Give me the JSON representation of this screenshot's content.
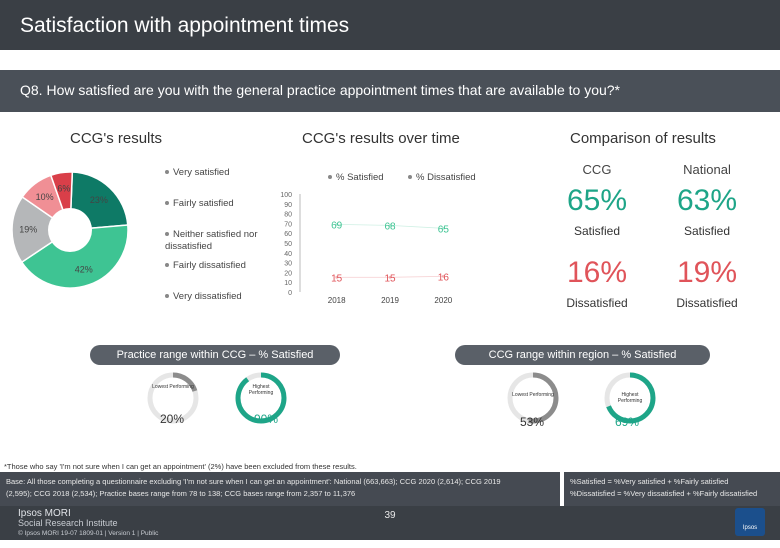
{
  "header": {
    "title": "Satisfaction with appointment times"
  },
  "question": "Q8. How satisfied are you with the general practice appointment times that are available to you?*",
  "sections": {
    "ccg_results": "CCG's results",
    "over_time": "CCG's results over time",
    "comparison": "Comparison of results"
  },
  "colors": {
    "very_satisfied": "#0e7a66",
    "fairly_satisfied": "#3ec493",
    "neither": "#b5b7b9",
    "fairly_dissatisfied": "#f08f95",
    "very_dissatisfied": "#d93f49",
    "satisfied_bar": "#3ec493",
    "dissatisfied_bar": "#e0545a"
  },
  "chart_data": [
    {
      "type": "pie",
      "categories": [
        "Very satisfied",
        "Fairly satisfied",
        "Neither satisfied nor dissatisfied",
        "Fairly dissatisfied",
        "Very dissatisfied"
      ],
      "values": [
        23,
        42,
        19,
        10,
        6
      ],
      "labels": [
        "23%",
        "42%",
        "19%",
        "10%",
        "6%"
      ]
    },
    {
      "type": "bar",
      "categories": [
        "2018",
        "2019",
        "2020"
      ],
      "series": [
        {
          "name": "% Satisfied",
          "values": [
            69,
            68,
            65
          ]
        },
        {
          "name": "% Dissatisfied",
          "values": [
            15,
            15,
            16
          ]
        }
      ],
      "yticks": [
        "0",
        "10",
        "20",
        "30",
        "40",
        "50",
        "60",
        "70",
        "80",
        "90",
        "100"
      ],
      "ylim": [
        0,
        100
      ]
    }
  ],
  "comparison": {
    "ccg_head": "CCG",
    "national_head": "National",
    "ccg_satisfied": "65%",
    "national_satisfied": "63%",
    "satisfied_label": "Satisfied",
    "ccg_dissatisfied": "16%",
    "national_dissatisfied": "19%",
    "dissatisfied_label": "Dissatisfied"
  },
  "practice_range": {
    "title": "Practice range within CCG – % Satisfied",
    "lowest_label": "Lowest Performing",
    "highest_label": "Highest Performing",
    "lowest": "20%",
    "highest": "90%",
    "lowest_value": 20,
    "highest_value": 90
  },
  "region_range": {
    "title": "CCG range within region – % Satisfied",
    "lowest_label": "Lowest Performing",
    "highest_label": "Highest Performing",
    "lowest": "53%",
    "highest": "69%",
    "lowest_value": 53,
    "highest_value": 69
  },
  "footnote": "*Those who say 'I'm not sure when I can get an appointment' (2%) have been excluded from these results.",
  "base": {
    "line1": "Base: All those completing a questionnaire excluding 'I'm not sure when I can get an appointment': National (663,663); CCG 2020 (2,614); CCG 2019",
    "line2": "(2,595); CCG 2018 (2,534); Practice bases range from 78 to 138; CCG bases range from 2,357 to 11,376"
  },
  "definitions": {
    "line1": "%Satisfied = %Very satisfied + %Fairly satisfied",
    "line2": "%Dissatisfied = %Very dissatisfied + %Fairly dissatisfied"
  },
  "footer": {
    "brand_line1": "Ipsos MORI",
    "brand_line2": "Social Research Institute",
    "credit": "© Ipsos MORI     19-07 1809-01 | Version 1 | Public",
    "page": "39",
    "badge": "Ipsos"
  }
}
